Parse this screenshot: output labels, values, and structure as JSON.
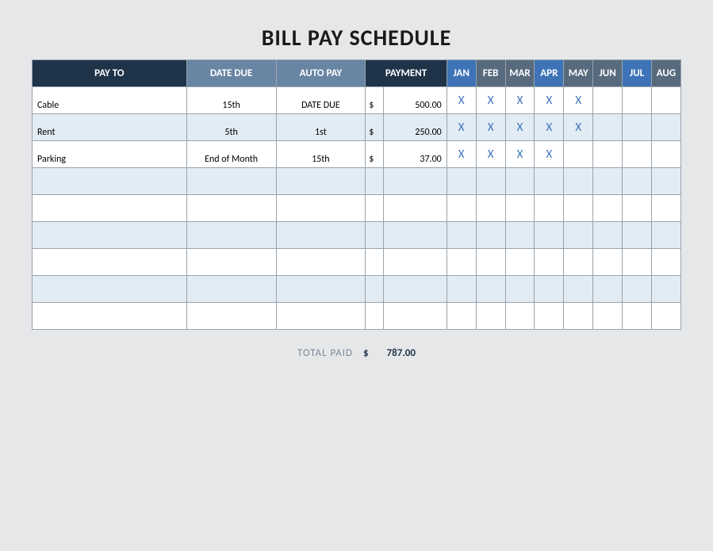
{
  "title": "BILL PAY SCHEDULE",
  "headers": {
    "payto": "PAY TO",
    "due": "DATE DUE",
    "autopay": "AUTO PAY",
    "payment": "PAYMENT"
  },
  "months": [
    "JAN",
    "FEB",
    "MAR",
    "APR",
    "MAY",
    "JUN",
    "JUL",
    "AUG"
  ],
  "month_header_colors": [
    "#3e74b7",
    "#586a7d",
    "#586a7d",
    "#3e74b7",
    "#586a7d",
    "#586a7d",
    "#3e74b7",
    "#586a7d"
  ],
  "rows": [
    {
      "payto": "Cable",
      "due": "15th",
      "autopay": "DATE DUE",
      "sym": "$",
      "amt": "500.00",
      "marks": [
        "X",
        "X",
        "X",
        "X",
        "X",
        "",
        "",
        ""
      ]
    },
    {
      "payto": "Rent",
      "due": "5th",
      "autopay": "1st",
      "sym": "$",
      "amt": "250.00",
      "marks": [
        "X",
        "X",
        "X",
        "X",
        "X",
        "",
        "",
        ""
      ]
    },
    {
      "payto": "Parking",
      "due": "End of Month",
      "autopay": "15th",
      "sym": "$",
      "amt": "37.00",
      "marks": [
        "X",
        "X",
        "X",
        "X",
        "",
        "",
        "",
        ""
      ]
    },
    {
      "payto": "",
      "due": "",
      "autopay": "",
      "sym": "",
      "amt": "",
      "marks": [
        "",
        "",
        "",
        "",
        "",
        "",
        "",
        ""
      ]
    },
    {
      "payto": "",
      "due": "",
      "autopay": "",
      "sym": "",
      "amt": "",
      "marks": [
        "",
        "",
        "",
        "",
        "",
        "",
        "",
        ""
      ]
    },
    {
      "payto": "",
      "due": "",
      "autopay": "",
      "sym": "",
      "amt": "",
      "marks": [
        "",
        "",
        "",
        "",
        "",
        "",
        "",
        ""
      ]
    },
    {
      "payto": "",
      "due": "",
      "autopay": "",
      "sym": "",
      "amt": "",
      "marks": [
        "",
        "",
        "",
        "",
        "",
        "",
        "",
        ""
      ]
    },
    {
      "payto": "",
      "due": "",
      "autopay": "",
      "sym": "",
      "amt": "",
      "marks": [
        "",
        "",
        "",
        "",
        "",
        "",
        "",
        ""
      ]
    },
    {
      "payto": "",
      "due": "",
      "autopay": "",
      "sym": "",
      "amt": "",
      "marks": [
        "",
        "",
        "",
        "",
        "",
        "",
        "",
        ""
      ]
    }
  ],
  "footer": {
    "label": "TOTAL PAID",
    "sym": "$",
    "amount": "787.00"
  },
  "colors": {
    "page_bg": "#e6e7e9",
    "header_dark": "#1f3349",
    "header_mid": "#6985a4",
    "row_alt_bg": "#e2ecf4",
    "border": "#9aa3ad",
    "mark_color": "#3e74b7"
  }
}
